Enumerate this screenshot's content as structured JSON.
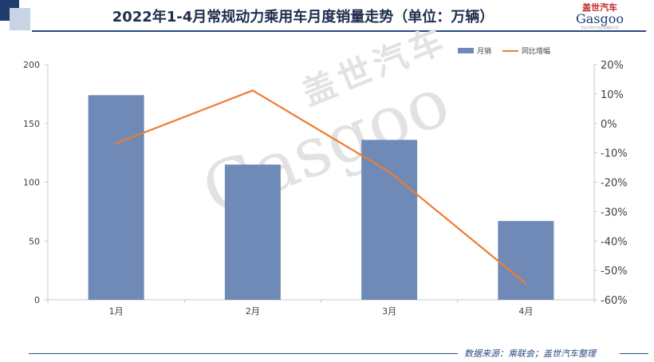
{
  "header": {
    "title": "2022年1-4月常规动力乘用车月度销量走势（单位：万辆）"
  },
  "logo": {
    "cn": "盖世汽车",
    "en": "Gasgoo",
    "sub": "专业汽车产业信息服务平台"
  },
  "watermark": {
    "cn": "盖世汽车",
    "en": "Gasgoo"
  },
  "footer": {
    "source": "数据来源：乘联会；盖世汽车整理"
  },
  "colors": {
    "bar": "#6f8ab7",
    "line": "#ed7d31",
    "axis": "#c8c8c8",
    "text": "#404040",
    "title": "#1f2d4d"
  },
  "chart_data": {
    "type": "bar",
    "categories": [
      "1月",
      "2月",
      "3月",
      "4月"
    ],
    "series": [
      {
        "name": "月销",
        "type": "bar",
        "axis": "left",
        "values": [
          174,
          115,
          136,
          67
        ]
      },
      {
        "name": "同比增幅",
        "type": "line",
        "axis": "right",
        "values": [
          -6.8,
          11.2,
          -16.5,
          -54.5
        ]
      }
    ],
    "y_left": {
      "min": 0,
      "max": 200,
      "ticks": [
        0,
        50,
        100,
        150,
        200
      ],
      "tick_labels": [
        "0",
        "50",
        "100",
        "150",
        "200"
      ]
    },
    "y_right": {
      "min": -60,
      "max": 20,
      "ticks": [
        20,
        10,
        0,
        -10,
        -20,
        -30,
        -40,
        -50,
        -60
      ],
      "tick_labels": [
        "20%",
        "10%",
        "0%",
        "-10%",
        "-20%",
        "-30%",
        "-40%",
        "-50%",
        "-60%"
      ]
    },
    "legend": {
      "position": "top-right",
      "entries": [
        "月销",
        "同比增幅"
      ]
    },
    "grid": false
  }
}
